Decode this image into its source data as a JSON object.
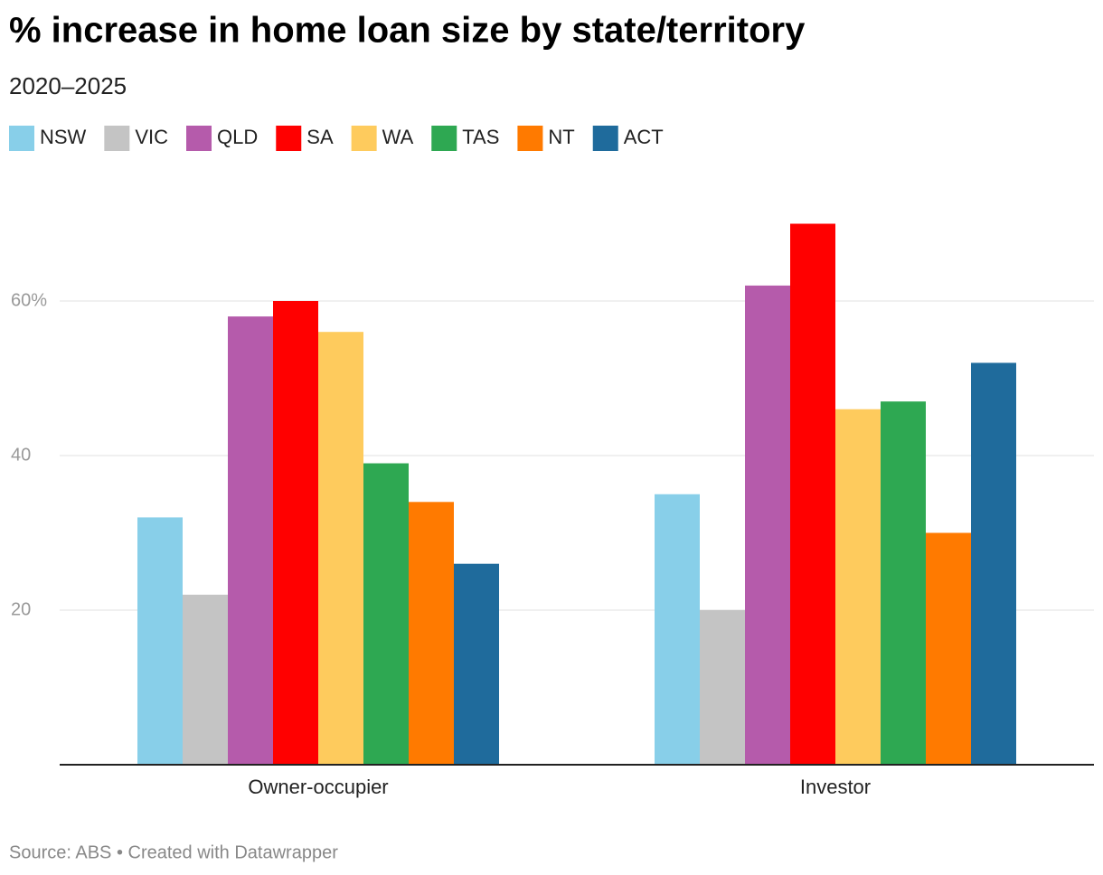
{
  "chart_data": {
    "type": "bar",
    "title": "% increase in home loan size by state/territory",
    "subtitle": "2020–2025",
    "source": "Source: ABS • Created with Datawrapper",
    "categories": [
      "Owner-occupier",
      "Investor"
    ],
    "series": [
      {
        "name": "NSW",
        "color": "#88cfe9",
        "values": [
          32,
          35
        ]
      },
      {
        "name": "VIC",
        "color": "#c4c4c4",
        "values": [
          22,
          20
        ]
      },
      {
        "name": "QLD",
        "color": "#b55bab",
        "values": [
          58,
          62
        ]
      },
      {
        "name": "SA",
        "color": "#ff0000",
        "values": [
          60,
          70
        ]
      },
      {
        "name": "WA",
        "color": "#fecb5d",
        "values": [
          56,
          46
        ]
      },
      {
        "name": "TAS",
        "color": "#2ea852",
        "values": [
          39,
          47
        ]
      },
      {
        "name": "NT",
        "color": "#ff7a00",
        "values": [
          34,
          30
        ]
      },
      {
        "name": "ACT",
        "color": "#1f6b9c",
        "values": [
          26,
          52
        ]
      }
    ],
    "ylim": [
      0,
      72
    ],
    "yticks": [
      20,
      40,
      {
        "value": 60,
        "label": "60%"
      }
    ],
    "grid": true
  }
}
